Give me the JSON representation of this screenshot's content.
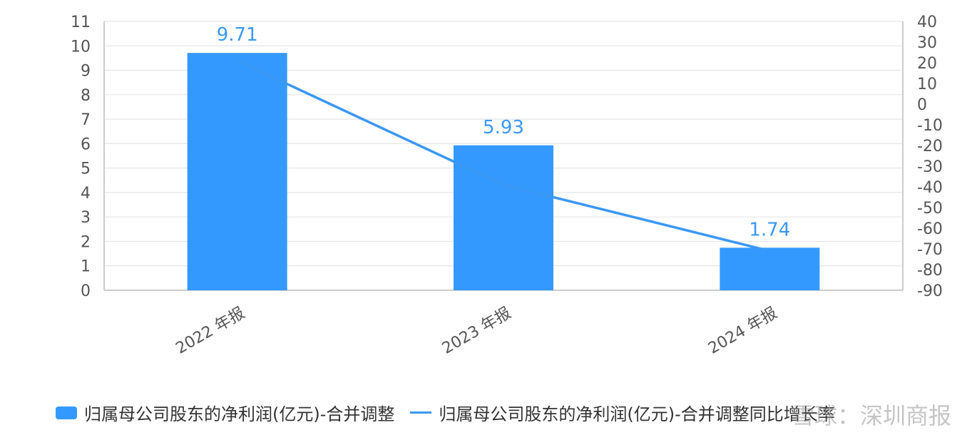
{
  "chart_data": {
    "type": "bar+line",
    "categories": [
      "2022 年报",
      "2023 年报",
      "2024 年报"
    ],
    "series": [
      {
        "name": "归属母公司股东的净利润(亿元)-合并调整",
        "type": "bar",
        "axis": "left",
        "values": [
          9.71,
          5.93,
          1.74
        ],
        "data_labels": [
          "9.71",
          "5.93",
          "1.74"
        ],
        "color": "#3399ff"
      },
      {
        "name": "归属母公司股东的净利润(亿元)-合并调整同比增长率",
        "type": "line",
        "axis": "right",
        "values": [
          21,
          -39,
          -71
        ],
        "color": "#3a98f5"
      }
    ],
    "yaxis_left": {
      "ylim": [
        0,
        11
      ],
      "ticks": [
        "0",
        "1",
        "2",
        "3",
        "4",
        "5",
        "6",
        "7",
        "8",
        "9",
        "10",
        "11"
      ]
    },
    "yaxis_right": {
      "ylim": [
        -90,
        40
      ],
      "ticks": [
        "-90",
        "-80",
        "-70",
        "-60",
        "-50",
        "-40",
        "-30",
        "-20",
        "-10",
        "0",
        "10",
        "20",
        "30",
        "40"
      ]
    },
    "grid": true,
    "legend_position": "bottom"
  },
  "legend": {
    "bar_label": "归属母公司股东的净利润(亿元)-合并调整",
    "line_label": "归属母公司股东的净利润(亿元)-合并调整同比增长率"
  },
  "watermark": "雪球：深圳商报"
}
